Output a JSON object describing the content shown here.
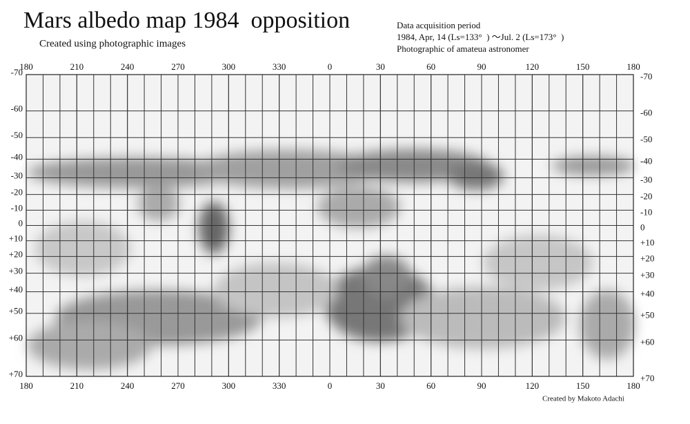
{
  "title": "Mars albedo map 1984  opposition",
  "subtitle": "Created using photographic images",
  "info": [
    "Data acquisition period",
    "1984, Apr, 14 (Ls=133°  ) ～Jul. 2 (Ls=173°  )",
    "Photographic of amateua astronomer"
  ],
  "credit": "Created by Makoto Adachi",
  "longitude_ticks": [
    180,
    210,
    240,
    270,
    300,
    330,
    0,
    30,
    60,
    90,
    120,
    150,
    180
  ],
  "latitude_ticks": [
    -70,
    -60,
    -50,
    -40,
    -30,
    -20,
    -10,
    0,
    {
      "value": 10,
      "label": "+10"
    },
    {
      "value": 20,
      "label": "+20"
    },
    {
      "value": 30,
      "label": "+30"
    },
    {
      "value": 40,
      "label": "+40"
    },
    {
      "value": 50,
      "label": "+50"
    },
    {
      "value": 60,
      "label": "+60"
    },
    {
      "value": 70,
      "label": "+70"
    }
  ]
}
